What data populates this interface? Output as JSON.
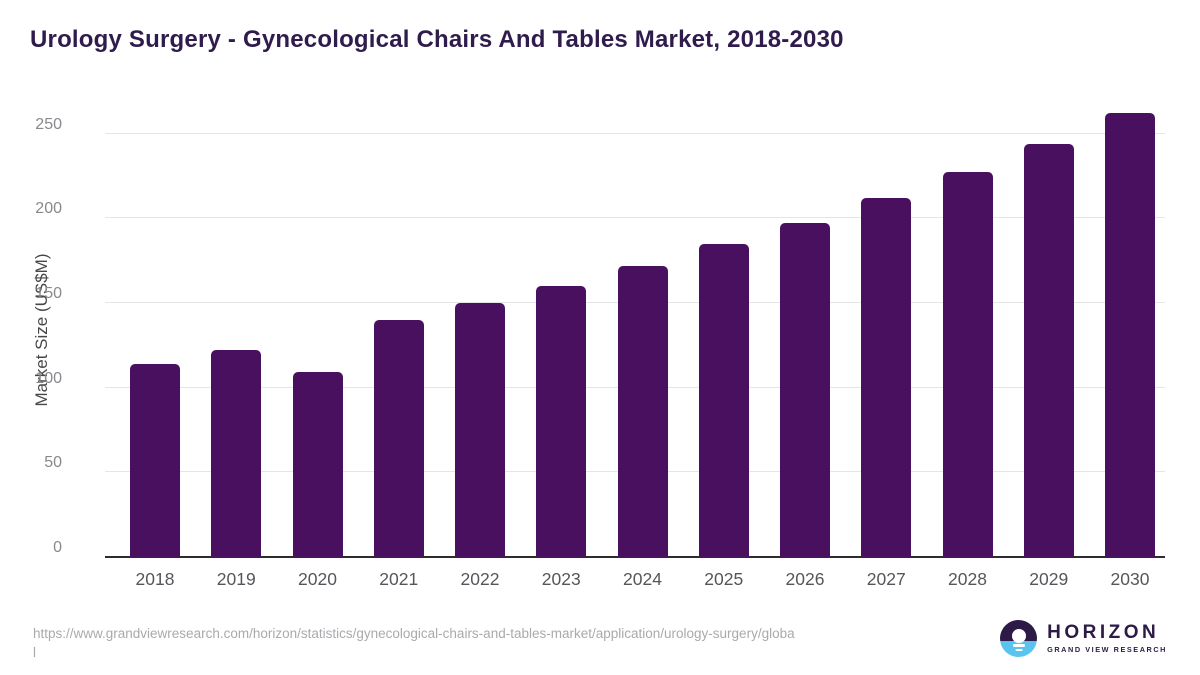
{
  "page": {
    "title": "Urology Surgery - Gynecological Chairs And Tables Market, 2018-2030"
  },
  "chart_data": {
    "type": "bar",
    "title": "Urology Surgery - Gynecological Chairs And Tables Market, 2018-2030",
    "categories": [
      "2018",
      "2019",
      "2020",
      "2021",
      "2022",
      "2023",
      "2024",
      "2025",
      "2026",
      "2027",
      "2028",
      "2029",
      "2030"
    ],
    "values": [
      114,
      122,
      109,
      140,
      150,
      160,
      172,
      185,
      197,
      212,
      227,
      244,
      262
    ],
    "xlabel": "",
    "ylabel": "Market Size (US$M)",
    "yticks": [
      0,
      50,
      100,
      150,
      200,
      250
    ],
    "ylim": [
      0,
      270
    ],
    "grid": true,
    "legend": "none",
    "bar_color": "#48105f"
  },
  "footer": {
    "url_line1": "https://www.grandviewresearch.com/horizon/statistics/gynecological-chairs-and-tables-market/application/urology-surgery/globa",
    "url_line2": "l",
    "logo": {
      "name": "HORIZON",
      "subtitle": "GRAND VIEW RESEARCH"
    }
  },
  "colors": {
    "title": "#2f1c4d",
    "bar": "#48105f",
    "grid": "#e5e5e5",
    "baseline": "#2d2d2d",
    "y_tick": "#87898c",
    "x_tick": "#55565a",
    "url": "#a8aaad",
    "logo_purple": "#2e1a47",
    "logo_blue": "#59c5ee"
  }
}
